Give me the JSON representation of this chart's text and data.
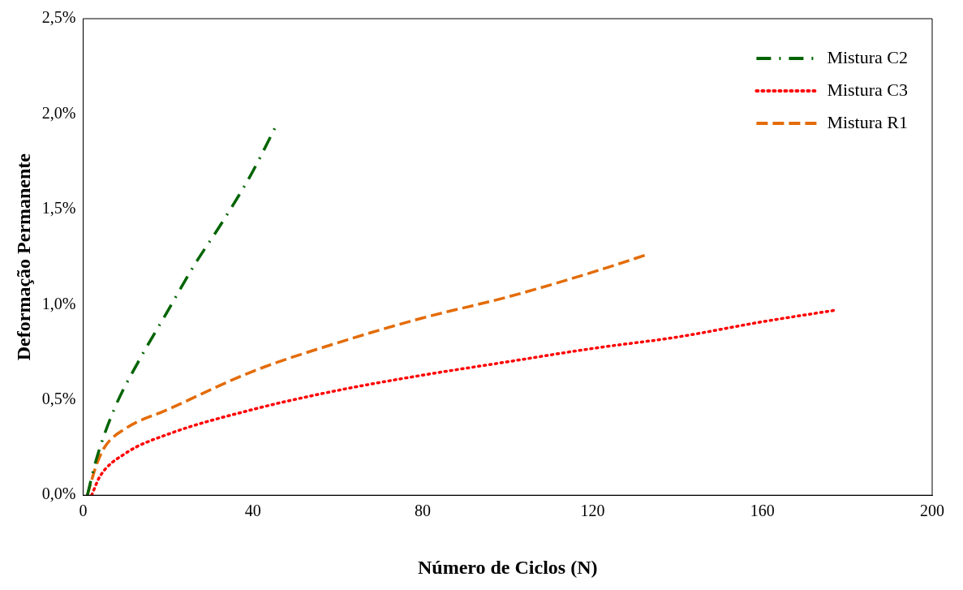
{
  "chart_data": {
    "type": "line",
    "xlabel": "Número de Ciclos (N)",
    "ylabel": "Deformação Permanente",
    "xlim": [
      0,
      200
    ],
    "xticks": [
      0,
      40,
      80,
      120,
      160,
      200
    ],
    "ylim": [
      0,
      2.5
    ],
    "yticks": [
      {
        "value": 0,
        "label": "0,0%"
      },
      {
        "value": 0.5,
        "label": "0,5%"
      },
      {
        "value": 1,
        "label": "1,0%"
      },
      {
        "value": 1.5,
        "label": "1,5%"
      },
      {
        "value": 2,
        "label": "2,0%"
      },
      {
        "value": 2.5,
        "label": "2,5%"
      }
    ],
    "grid": false,
    "legend": "top right",
    "marker": "none",
    "series": [
      {
        "name": "Mistura C2",
        "color": "#006400",
        "line_style": "dashdot",
        "x": [
          1,
          3,
          7.3,
          13,
          19.5,
          26,
          33,
          39.5,
          45.5
        ],
        "values": [
          0,
          0.18,
          0.45,
          0.7,
          0.95,
          1.2,
          1.44,
          1.68,
          1.94
        ]
      },
      {
        "name": "Mistura C3",
        "color": "#ff0000",
        "line_style": "dotted",
        "x": [
          2,
          4,
          10,
          20,
          40,
          60,
          80,
          100,
          120,
          140,
          160,
          177
        ],
        "values": [
          0,
          0.1,
          0.22,
          0.32,
          0.45,
          0.55,
          0.63,
          0.7,
          0.77,
          0.83,
          0.91,
          0.97
        ]
      },
      {
        "name": "Mistura R1",
        "color": "#e36c09",
        "line_style": "dashed",
        "x": [
          1,
          3,
          5,
          10,
          20,
          40,
          60,
          80,
          100,
          120,
          132.5
        ],
        "values": [
          0,
          0.15,
          0.25,
          0.35,
          0.45,
          0.65,
          0.8,
          0.93,
          1.04,
          1.17,
          1.26
        ]
      }
    ]
  }
}
